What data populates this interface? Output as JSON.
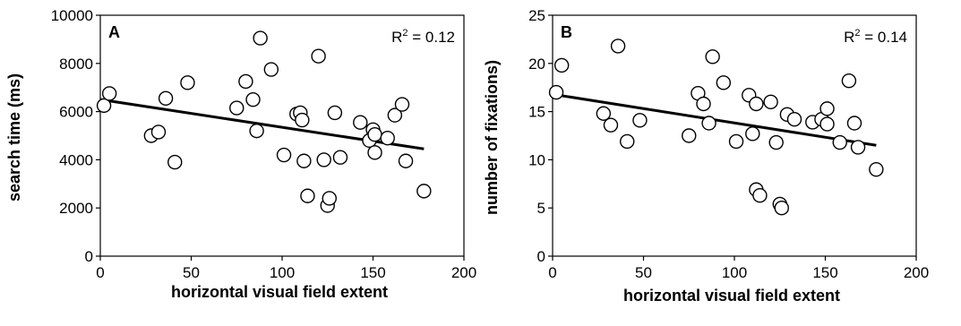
{
  "chart_data": [
    {
      "type": "scatter",
      "panel_label": "A",
      "annotation": "R",
      "annotation_sup": "2",
      "annotation_value": " = 0.12",
      "xlabel": "horizontal visual field extent",
      "ylabel": "search time (ms)",
      "xlim": [
        0,
        200
      ],
      "ylim": [
        0,
        10000
      ],
      "xticks": [
        "0",
        "50",
        "100",
        "150",
        "200"
      ],
      "yticks": [
        "0",
        "2000",
        "4000",
        "6000",
        "8000",
        "10000"
      ],
      "grid": false,
      "trendline": {
        "x": [
          0,
          178
        ],
        "y": [
          6500,
          4450
        ]
      },
      "points": [
        [
          2,
          6250
        ],
        [
          5,
          6750
        ],
        [
          28,
          5000
        ],
        [
          32,
          5150
        ],
        [
          36,
          6550
        ],
        [
          41,
          3900
        ],
        [
          48,
          7200
        ],
        [
          75,
          6150
        ],
        [
          80,
          7250
        ],
        [
          84,
          6500
        ],
        [
          86,
          5200
        ],
        [
          88,
          9050
        ],
        [
          94,
          7750
        ],
        [
          101,
          4200
        ],
        [
          108,
          5900
        ],
        [
          110,
          5950
        ],
        [
          111,
          5650
        ],
        [
          112,
          3950
        ],
        [
          114,
          2500
        ],
        [
          120,
          8300
        ],
        [
          123,
          4000
        ],
        [
          125,
          2100
        ],
        [
          126,
          2400
        ],
        [
          129,
          5950
        ],
        [
          132,
          4100
        ],
        [
          143,
          5550
        ],
        [
          148,
          4800
        ],
        [
          150,
          5250
        ],
        [
          151,
          5050
        ],
        [
          151,
          4300
        ],
        [
          158,
          4900
        ],
        [
          162,
          5850
        ],
        [
          166,
          6300
        ],
        [
          168,
          3950
        ],
        [
          178,
          2700
        ]
      ]
    },
    {
      "type": "scatter",
      "panel_label": "B",
      "annotation": "R",
      "annotation_sup": "2",
      "annotation_value": " = 0.14",
      "xlabel": "horizontal visual field extent",
      "ylabel": "number of fixations)",
      "xlim": [
        0,
        200
      ],
      "ylim": [
        0,
        25
      ],
      "xticks": [
        "0",
        "50",
        "100",
        "150",
        "200"
      ],
      "yticks": [
        "0",
        "5",
        "10",
        "15",
        "20",
        "25"
      ],
      "grid": false,
      "trendline": {
        "x": [
          0,
          178
        ],
        "y": [
          16.8,
          11.5
        ]
      },
      "points": [
        [
          2,
          17.0
        ],
        [
          5,
          19.8
        ],
        [
          28,
          14.8
        ],
        [
          32,
          13.6
        ],
        [
          36,
          21.8
        ],
        [
          41,
          11.9
        ],
        [
          48,
          14.1
        ],
        [
          75,
          12.5
        ],
        [
          80,
          16.9
        ],
        [
          83,
          15.8
        ],
        [
          86,
          13.8
        ],
        [
          88,
          20.7
        ],
        [
          94,
          18.0
        ],
        [
          101,
          11.9
        ],
        [
          108,
          16.7
        ],
        [
          110,
          12.7
        ],
        [
          112,
          15.8
        ],
        [
          112,
          6.9
        ],
        [
          114,
          6.3
        ],
        [
          120,
          16.0
        ],
        [
          123,
          11.8
        ],
        [
          125,
          5.4
        ],
        [
          126,
          5.0
        ],
        [
          129,
          14.7
        ],
        [
          133,
          14.2
        ],
        [
          143,
          13.9
        ],
        [
          148,
          14.2
        ],
        [
          151,
          15.3
        ],
        [
          151,
          13.7
        ],
        [
          158,
          11.8
        ],
        [
          163,
          18.2
        ],
        [
          166,
          13.8
        ],
        [
          168,
          11.3
        ],
        [
          178,
          9.0
        ]
      ]
    }
  ]
}
